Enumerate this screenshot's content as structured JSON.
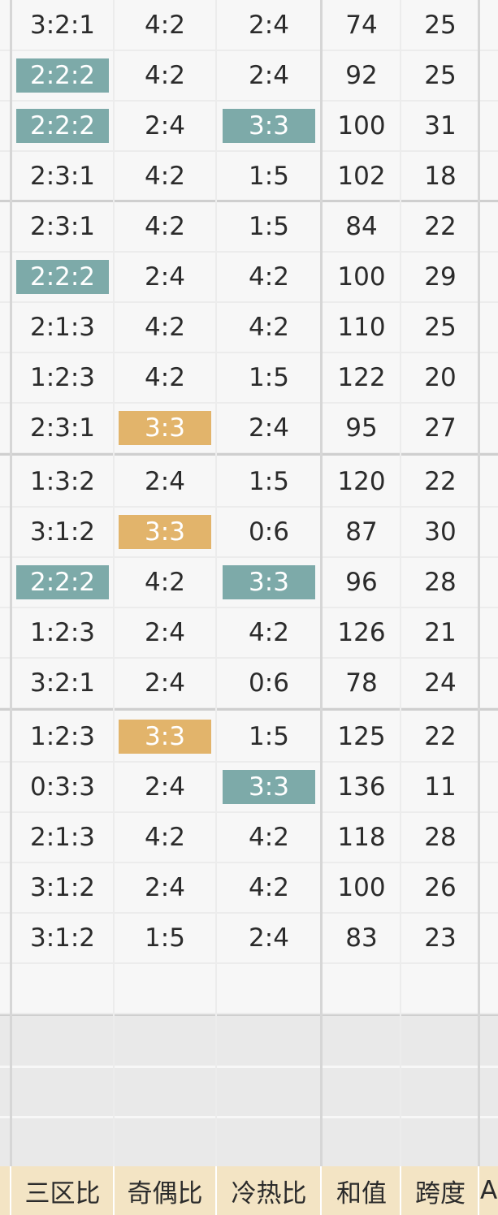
{
  "columns": [
    {
      "key": "sanqubi",
      "header": "三区比"
    },
    {
      "key": "jioubi",
      "header": "奇偶比"
    },
    {
      "key": "lengrebi",
      "header": "冷热比"
    },
    {
      "key": "hezhi",
      "header": "和值"
    },
    {
      "key": "kuadu",
      "header": "跨度"
    },
    {
      "key": "next",
      "header": "A"
    }
  ],
  "groups": [
    {
      "rows": [
        {
          "sanqubi": "3:2:1",
          "jioubi": "4:2",
          "lengrebi": "2:4",
          "hezhi": "74",
          "kuadu": "25"
        },
        {
          "sanqubi": "2:2:2",
          "jioubi": "4:2",
          "lengrebi": "2:4",
          "hezhi": "92",
          "kuadu": "25",
          "hl": {
            "sanqubi": "teal"
          }
        },
        {
          "sanqubi": "2:2:2",
          "jioubi": "2:4",
          "lengrebi": "3:3",
          "hezhi": "100",
          "kuadu": "31",
          "hl": {
            "sanqubi": "teal",
            "lengrebi": "teal"
          }
        },
        {
          "sanqubi": "2:3:1",
          "jioubi": "4:2",
          "lengrebi": "1:5",
          "hezhi": "102",
          "kuadu": "18"
        }
      ]
    },
    {
      "rows": [
        {
          "sanqubi": "2:3:1",
          "jioubi": "4:2",
          "lengrebi": "1:5",
          "hezhi": "84",
          "kuadu": "22"
        },
        {
          "sanqubi": "2:2:2",
          "jioubi": "2:4",
          "lengrebi": "4:2",
          "hezhi": "100",
          "kuadu": "29",
          "hl": {
            "sanqubi": "teal"
          }
        },
        {
          "sanqubi": "2:1:3",
          "jioubi": "4:2",
          "lengrebi": "4:2",
          "hezhi": "110",
          "kuadu": "25"
        },
        {
          "sanqubi": "1:2:3",
          "jioubi": "4:2",
          "lengrebi": "1:5",
          "hezhi": "122",
          "kuadu": "20"
        },
        {
          "sanqubi": "2:3:1",
          "jioubi": "3:3",
          "lengrebi": "2:4",
          "hezhi": "95",
          "kuadu": "27",
          "hl": {
            "jioubi": "gold"
          }
        }
      ]
    },
    {
      "rows": [
        {
          "sanqubi": "1:3:2",
          "jioubi": "2:4",
          "lengrebi": "1:5",
          "hezhi": "120",
          "kuadu": "22"
        },
        {
          "sanqubi": "3:1:2",
          "jioubi": "3:3",
          "lengrebi": "0:6",
          "hezhi": "87",
          "kuadu": "30",
          "hl": {
            "jioubi": "gold"
          }
        },
        {
          "sanqubi": "2:2:2",
          "jioubi": "4:2",
          "lengrebi": "3:3",
          "hezhi": "96",
          "kuadu": "28",
          "hl": {
            "sanqubi": "teal",
            "lengrebi": "teal"
          }
        },
        {
          "sanqubi": "1:2:3",
          "jioubi": "2:4",
          "lengrebi": "4:2",
          "hezhi": "126",
          "kuadu": "21"
        },
        {
          "sanqubi": "3:2:1",
          "jioubi": "2:4",
          "lengrebi": "0:6",
          "hezhi": "78",
          "kuadu": "24"
        }
      ]
    },
    {
      "rows": [
        {
          "sanqubi": "1:2:3",
          "jioubi": "3:3",
          "lengrebi": "1:5",
          "hezhi": "125",
          "kuadu": "22",
          "hl": {
            "jioubi": "gold"
          }
        },
        {
          "sanqubi": "0:3:3",
          "jioubi": "2:4",
          "lengrebi": "3:3",
          "hezhi": "136",
          "kuadu": "11",
          "hl": {
            "lengrebi": "teal"
          }
        },
        {
          "sanqubi": "2:1:3",
          "jioubi": "4:2",
          "lengrebi": "4:2",
          "hezhi": "118",
          "kuadu": "28"
        },
        {
          "sanqubi": "3:1:2",
          "jioubi": "2:4",
          "lengrebi": "4:2",
          "hezhi": "100",
          "kuadu": "26"
        },
        {
          "sanqubi": "3:1:2",
          "jioubi": "1:5",
          "lengrebi": "2:4",
          "hezhi": "83",
          "kuadu": "23"
        }
      ]
    }
  ],
  "colors": {
    "teal": "#7daaa9",
    "gold": "#e2b46b",
    "footer": "#f3e4c4",
    "empty": "#e9e9e9"
  }
}
